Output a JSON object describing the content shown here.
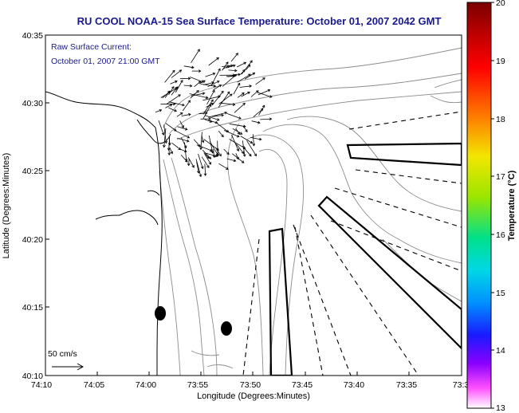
{
  "title": "RU COOL  NOAA-15  Sea Surface Temperature:  October 01, 2007 2042 GMT",
  "current_note": {
    "line1": "Raw Surface Current:",
    "line2": "October 01, 2007 21:00 GMT"
  },
  "scale_label": "50 cm/s",
  "xlabel": "Longitude (Degrees:Minutes)",
  "ylabel": "Latitude (Degrees:Minutes)",
  "x_ticks": [
    "74:10",
    "74:05",
    "74:00",
    "73:55",
    "73:50",
    "73:45",
    "73:40",
    "73:35",
    "73:3"
  ],
  "y_ticks": [
    "40:35",
    "40:30",
    "40:25",
    "40:20",
    "40:15",
    "40:10"
  ],
  "colorbar": {
    "label": "Temperature (°C)",
    "ticks": [
      "20",
      "19",
      "18",
      "17",
      "16",
      "15",
      "14",
      "13"
    ],
    "colors": [
      "#7a0000",
      "#ff0000",
      "#ff8a00",
      "#f2e600",
      "#8fe600",
      "#00e0a0",
      "#00c8ff",
      "#0050ff",
      "#1a1aff",
      "#a000ff",
      "#ff80ff",
      "#ffffff"
    ]
  }
}
